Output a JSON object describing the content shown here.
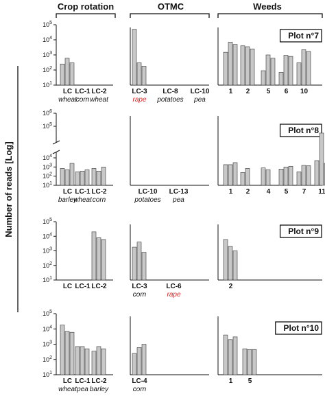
{
  "column_titles": [
    "Crop rotation",
    "OTMC",
    "Weeds"
  ],
  "y_axis_label": "Number of reads [Log]",
  "colors": {
    "bar_fill": "#c8c8c8",
    "bar_stroke": "#333333",
    "text": "#111111",
    "highlight": "#e02020"
  },
  "chart_data": {
    "type": "bar",
    "ylabel": "Number of reads [Log]",
    "yscale": "log",
    "panels": [
      {
        "title": "Plot n°7",
        "ylim": [
          10,
          100000
        ],
        "yticks": [
          "10¹",
          "10²",
          "10³",
          "10⁴",
          "10⁵"
        ],
        "groups": {
          "crop_rotation": [
            {
              "label": "LC",
              "sublabel": "wheat",
              "values": [
                250,
                600,
                300
              ]
            },
            {
              "label": "LC-1",
              "sublabel": "corn",
              "values": []
            },
            {
              "label": "LC-2",
              "sublabel": "wheat",
              "values": []
            }
          ],
          "otmc": [
            {
              "label": "LC-3",
              "sublabel": "rape",
              "sublabel_highlight": true,
              "values": [
                50000,
                300,
                180
              ]
            },
            {
              "label": "LC-8",
              "sublabel": "potatoes",
              "values": []
            },
            {
              "label": "LC-10",
              "sublabel": "pea",
              "values": []
            }
          ],
          "weeds": [
            {
              "label": "1",
              "values": [
                1500,
                7000,
                5000
              ]
            },
            {
              "label": "2",
              "values": [
                4000,
                3500,
                2500
              ]
            },
            {
              "label": "5",
              "values": [
                90,
                1000,
                600
              ]
            },
            {
              "label": "6",
              "values": [
                70,
                950,
                800
              ]
            },
            {
              "label": "10",
              "values": [
                300,
                2200,
                1700
              ]
            }
          ]
        }
      },
      {
        "title": "Plot n°8",
        "ylim": [
          10,
          1000000
        ],
        "yticks": [
          "10¹",
          "10²",
          "10³",
          "10⁴",
          "10⁵",
          "10⁶"
        ],
        "axis_break": true,
        "groups": {
          "crop_rotation": [
            {
              "label": "LC",
              "sublabel": "barley",
              "values": [
                700,
                500,
                2500
              ]
            },
            {
              "label": "LC-1",
              "sublabel": "wheat",
              "values": [
                300,
                350,
                500
              ]
            },
            {
              "label": "LC-2",
              "sublabel": "corn",
              "values": [
                700,
                350,
                1000
              ]
            }
          ],
          "otmc": [
            {
              "label": "LC-10",
              "sublabel": "potatoes",
              "values": []
            },
            {
              "label": "LC-13",
              "sublabel": "pea",
              "values": []
            }
          ],
          "weeds": [
            {
              "label": "1",
              "values": [
                1800,
                1800,
                3000
              ]
            },
            {
              "label": "2",
              "values": [
                250,
                700
              ]
            },
            {
              "label": "4",
              "values": [
                800,
                500
              ]
            },
            {
              "label": "5",
              "values": [
                600,
                1000,
                1200
              ]
            },
            {
              "label": "7",
              "values": [
                300,
                1500,
                1400
              ]
            },
            {
              "label": "11",
              "values": [
                5000,
                30000,
                2500
              ]
            }
          ]
        }
      },
      {
        "title": "Plot n°9",
        "ylim": [
          10,
          100000
        ],
        "yticks": [
          "10¹",
          "10²",
          "10³",
          "10⁴",
          "10⁵"
        ],
        "groups": {
          "crop_rotation": [
            {
              "label": "LC",
              "values": []
            },
            {
              "label": "LC-1",
              "values": []
            },
            {
              "label": "LC-2",
              "values": [
                20000,
                8000,
                6000
              ]
            }
          ],
          "otmc": [
            {
              "label": "LC-3",
              "sublabel": "corn",
              "values": [
                1800,
                4000,
                800
              ]
            },
            {
              "label": "LC-6",
              "sublabel": "rape",
              "sublabel_highlight": true,
              "values": []
            }
          ],
          "weeds": [
            {
              "label": "2",
              "values": [
                6000,
                2000,
                1000
              ]
            }
          ]
        }
      },
      {
        "title": "Plot n°10",
        "ylim": [
          10,
          100000
        ],
        "yticks": [
          "10¹",
          "10²",
          "10³",
          "10⁴",
          "10⁵"
        ],
        "groups": {
          "crop_rotation": [
            {
              "label": "LC",
              "sublabel": "wheat",
              "values": [
                18000,
                7000,
                6000
              ]
            },
            {
              "label": "LC-1",
              "sublabel": "pea",
              "values": [
                700,
                700,
                500
              ]
            },
            {
              "label": "LC-2",
              "sublabel": "barley",
              "values": [
                350,
                700,
                500
              ]
            }
          ],
          "otmc": [
            {
              "label": "LC-4",
              "sublabel": "corn",
              "values": [
                250,
                600,
                1000
              ]
            }
          ],
          "weeds": [
            {
              "label": "1",
              "values": [
                4000,
                2000,
                3000
              ]
            },
            {
              "label": "5",
              "values": [
                500,
                450,
                450
              ]
            }
          ]
        }
      }
    ]
  }
}
